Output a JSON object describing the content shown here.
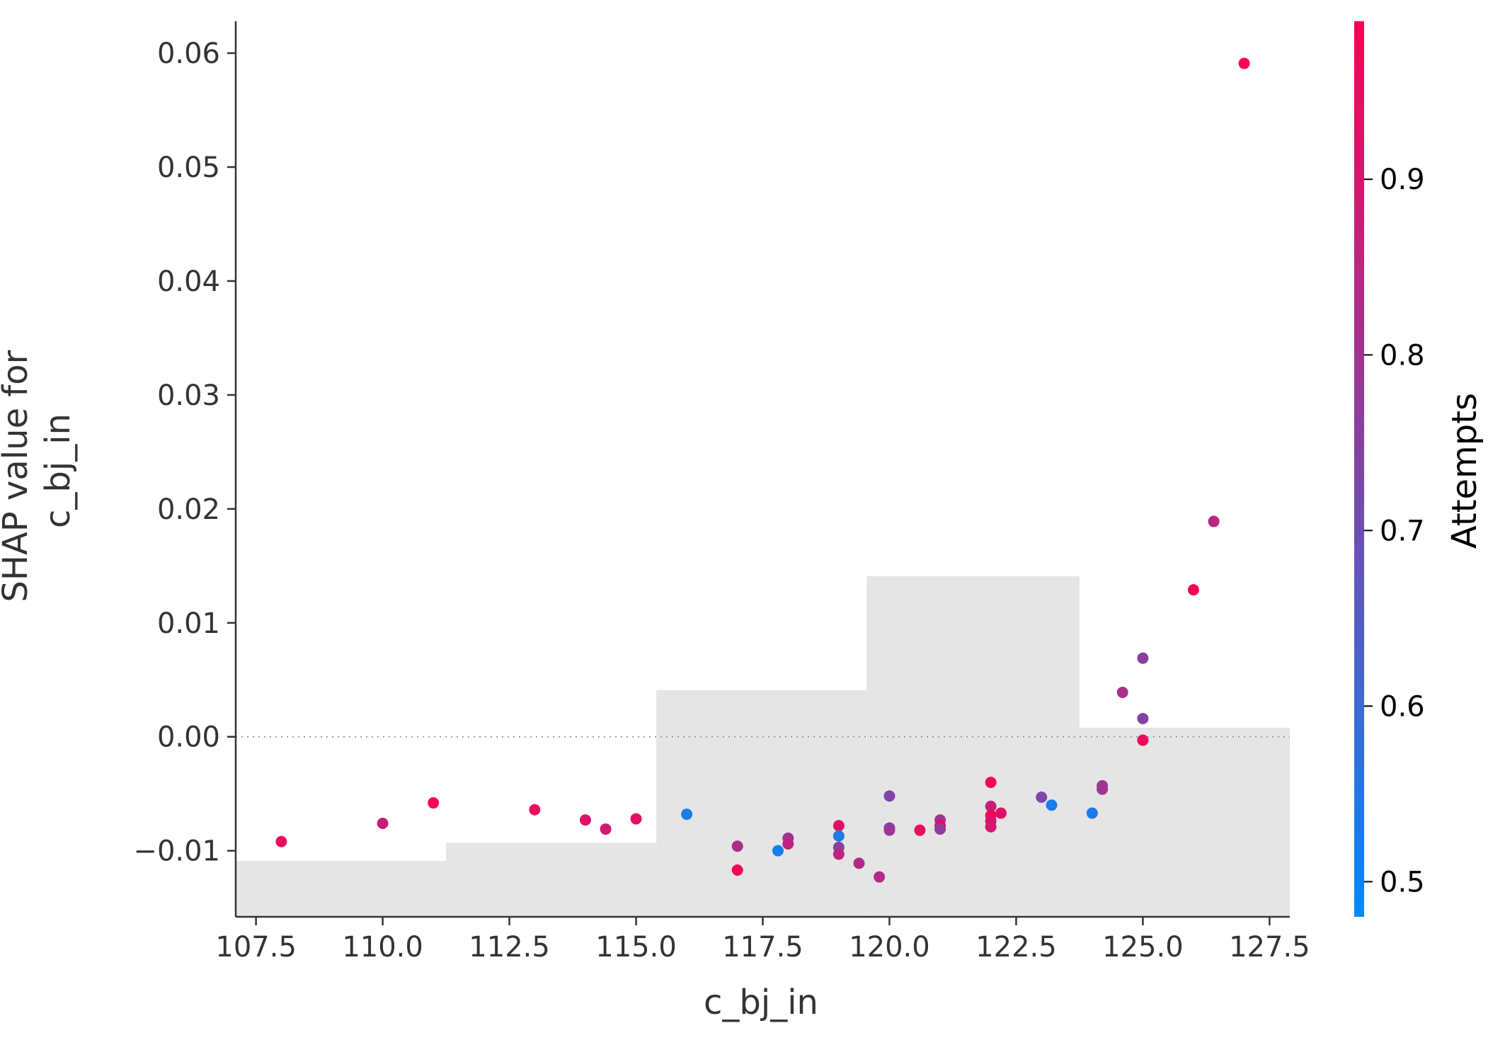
{
  "chart_data": {
    "type": "scatter",
    "title": "",
    "xlabel": "c_bj_in",
    "ylabel_lines": [
      "SHAP value for",
      "c_bj_in"
    ],
    "xlim": [
      107.1,
      127.9
    ],
    "ylim": [
      -0.0158,
      0.0628
    ],
    "xticks": [
      107.5,
      110.0,
      112.5,
      115.0,
      117.5,
      120.0,
      122.5,
      125.0,
      127.5
    ],
    "xtick_labels": [
      "107.5",
      "110.0",
      "112.5",
      "115.0",
      "117.5",
      "120.0",
      "122.5",
      "125.0",
      "127.5"
    ],
    "yticks": [
      -0.01,
      0.0,
      0.01,
      0.02,
      0.03,
      0.04,
      0.05,
      0.06
    ],
    "ytick_labels": [
      "−0.01",
      "0.00",
      "0.01",
      "0.02",
      "0.03",
      "0.04",
      "0.05",
      "0.06"
    ],
    "zero_line": 0.0,
    "grid": false,
    "background_histogram": [
      {
        "x0": 107.1,
        "x1": 111.25,
        "top": -0.0109
      },
      {
        "x0": 111.25,
        "x1": 115.4,
        "top": -0.0093
      },
      {
        "x0": 115.4,
        "x1": 119.55,
        "top": 0.0041
      },
      {
        "x0": 119.55,
        "x1": 123.75,
        "top": 0.0141
      },
      {
        "x0": 123.75,
        "x1": 127.9,
        "top": 0.0008
      }
    ],
    "colorbar": {
      "label": "Attempts",
      "min": 0.48,
      "max": 0.99,
      "ticks": [
        0.5,
        0.6,
        0.7,
        0.8,
        0.9
      ],
      "tick_labels": [
        "0.5",
        "0.6",
        "0.7",
        "0.8",
        "0.9"
      ],
      "colors": [
        "#008afb",
        "#ff0052"
      ]
    },
    "points": [
      {
        "x": 108.0,
        "y": -0.0092,
        "c": 0.95
      },
      {
        "x": 110.0,
        "y": -0.0076,
        "c": 0.88
      },
      {
        "x": 111.0,
        "y": -0.0058,
        "c": 0.97
      },
      {
        "x": 113.0,
        "y": -0.0064,
        "c": 0.95
      },
      {
        "x": 114.0,
        "y": -0.0073,
        "c": 0.92
      },
      {
        "x": 114.4,
        "y": -0.0081,
        "c": 0.89
      },
      {
        "x": 115.0,
        "y": -0.0072,
        "c": 0.94
      },
      {
        "x": 116.0,
        "y": -0.0068,
        "c": 0.53
      },
      {
        "x": 117.0,
        "y": -0.0096,
        "c": 0.82
      },
      {
        "x": 117.0,
        "y": -0.0117,
        "c": 0.97
      },
      {
        "x": 117.8,
        "y": -0.01,
        "c": 0.52
      },
      {
        "x": 118.0,
        "y": -0.0089,
        "c": 0.8
      },
      {
        "x": 118.0,
        "y": -0.0094,
        "c": 0.86
      },
      {
        "x": 119.0,
        "y": -0.0078,
        "c": 0.94
      },
      {
        "x": 119.0,
        "y": -0.0087,
        "c": 0.54
      },
      {
        "x": 119.0,
        "y": -0.0097,
        "c": 0.76
      },
      {
        "x": 119.0,
        "y": -0.0103,
        "c": 0.86
      },
      {
        "x": 119.4,
        "y": -0.0111,
        "c": 0.83
      },
      {
        "x": 119.8,
        "y": -0.0123,
        "c": 0.84
      },
      {
        "x": 120.0,
        "y": -0.0052,
        "c": 0.74
      },
      {
        "x": 120.0,
        "y": -0.008,
        "c": 0.72
      },
      {
        "x": 120.0,
        "y": -0.0082,
        "c": 0.79
      },
      {
        "x": 120.6,
        "y": -0.0082,
        "c": 0.95
      },
      {
        "x": 121.0,
        "y": -0.0073,
        "c": 0.79
      },
      {
        "x": 121.0,
        "y": -0.0078,
        "c": 0.96
      },
      {
        "x": 121.0,
        "y": -0.0081,
        "c": 0.77
      },
      {
        "x": 122.0,
        "y": -0.004,
        "c": 0.97
      },
      {
        "x": 122.0,
        "y": -0.0061,
        "c": 0.88
      },
      {
        "x": 122.0,
        "y": -0.0069,
        "c": 0.97
      },
      {
        "x": 122.0,
        "y": -0.0074,
        "c": 0.92
      },
      {
        "x": 122.0,
        "y": -0.0079,
        "c": 0.9
      },
      {
        "x": 122.2,
        "y": -0.0067,
        "c": 0.93
      },
      {
        "x": 123.0,
        "y": -0.0053,
        "c": 0.73
      },
      {
        "x": 123.2,
        "y": -0.006,
        "c": 0.53
      },
      {
        "x": 124.0,
        "y": -0.0067,
        "c": 0.53
      },
      {
        "x": 124.2,
        "y": -0.0043,
        "c": 0.78
      },
      {
        "x": 124.2,
        "y": -0.0046,
        "c": 0.8
      },
      {
        "x": 124.6,
        "y": 0.0039,
        "c": 0.82
      },
      {
        "x": 125.0,
        "y": 0.0069,
        "c": 0.76
      },
      {
        "x": 125.0,
        "y": 0.0016,
        "c": 0.75
      },
      {
        "x": 125.0,
        "y": -0.0003,
        "c": 0.96
      },
      {
        "x": 126.0,
        "y": 0.0129,
        "c": 0.97
      },
      {
        "x": 126.4,
        "y": 0.0189,
        "c": 0.85
      },
      {
        "x": 127.0,
        "y": 0.0591,
        "c": 0.98
      }
    ]
  }
}
